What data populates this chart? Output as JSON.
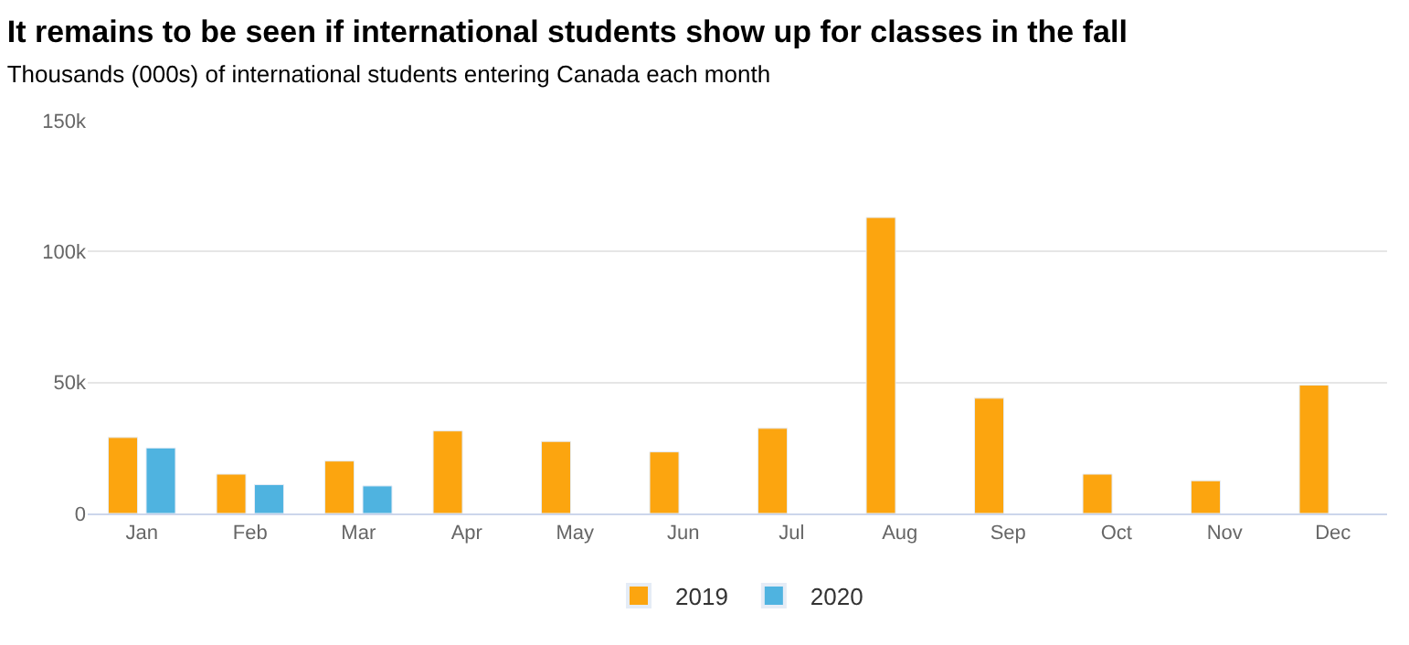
{
  "chart_data": {
    "type": "bar",
    "title": "It remains to be seen if international students show up for classes in the fall",
    "subtitle": "Thousands (000s) of international students entering Canada each month",
    "categories": [
      "Jan",
      "Feb",
      "Mar",
      "Apr",
      "May",
      "Jun",
      "Jul",
      "Aug",
      "Sep",
      "Oct",
      "Nov",
      "Dec"
    ],
    "series": [
      {
        "name": "2019",
        "color": "#fca50f",
        "values": [
          29000,
          15000,
          20000,
          31500,
          27500,
          23500,
          32500,
          113000,
          44000,
          15000,
          12500,
          49000
        ]
      },
      {
        "name": "2020",
        "color": "#4fb3e0",
        "values": [
          25000,
          11000,
          10500,
          null,
          null,
          null,
          null,
          null,
          null,
          null,
          null,
          null
        ]
      }
    ],
    "ylim": [
      0,
      150000
    ],
    "yticks": [
      {
        "value": 0,
        "label": "0"
      },
      {
        "value": 50000,
        "label": "50k"
      },
      {
        "value": 100000,
        "label": "100k"
      },
      {
        "value": 150000,
        "label": "150k"
      }
    ],
    "grid": "y",
    "legend": "bottom"
  }
}
